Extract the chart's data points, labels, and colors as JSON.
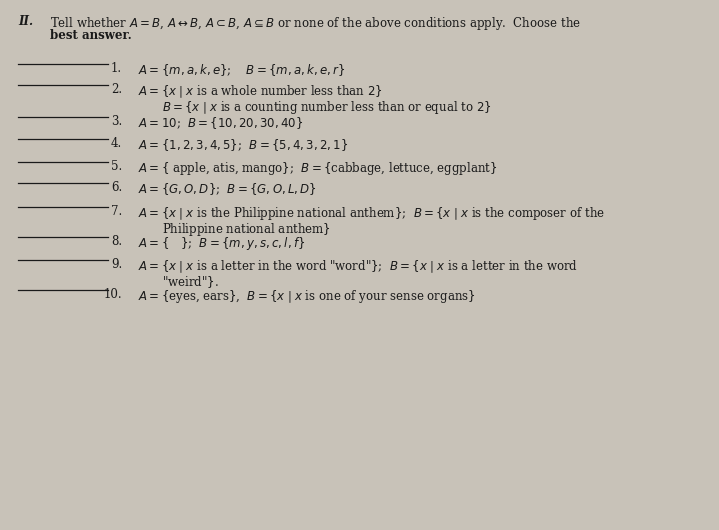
{
  "bg_color": "#c8c2b8",
  "text_color": "#1a1a1a",
  "title_roman": "II.",
  "title_line1": "Tell whether $A = B$, $A \\leftrightarrow B$, $A \\subset B$, $A \\subseteq B$ or none of the above conditions apply.  Choose the",
  "title_line2": "best answer.",
  "font_size": 8.5,
  "items": [
    {
      "num": "1.",
      "line1": "$A = \\{m, a, k, e\\}$;    $B = \\{m, a,k, e, r\\}$",
      "line2": null
    },
    {
      "num": "2.",
      "line1": "$A = \\{x \\mid x$ is a whole number less than $2\\}$",
      "line2": "$B = \\{x \\mid x$ is a counting number less than or equal to $2\\}$"
    },
    {
      "num": "3.",
      "line1": "$A = 10$;  $B = \\{10, 20, 30, 40\\}$",
      "line2": null
    },
    {
      "num": "4.",
      "line1": "$A = \\{1, 2, 3, 4, 5\\}$;  $B = \\{5, 4, 3, 2, 1\\}$",
      "line2": null
    },
    {
      "num": "5.",
      "line1": "$A = \\{$ apple, atis, mango$\\}$;  $B = \\{$cabbage, lettuce, eggplant$\\}$",
      "line2": null
    },
    {
      "num": "6.",
      "line1": "$A = \\{G, O, D\\}$;  $B = \\{G, O, L, D\\}$",
      "line2": null
    },
    {
      "num": "7.",
      "line1": "$A = \\{x \\mid x$ is the Philippine national anthem$\\}$;  $B = \\{x \\mid x$ is the composer of the",
      "line2": "Philippine national anthem$\\}$"
    },
    {
      "num": "8.",
      "line1": "$A = \\{\\quad\\}$;  $B = \\{m, y, s, c, l, f\\}$",
      "line2": null
    },
    {
      "num": "9.",
      "line1": "$A = \\{x \\mid x$ is a letter in the word \"word\"$\\}$;  $B = \\{x \\mid x$ is a letter in the word",
      "line2": "\"weird\"$\\}$."
    },
    {
      "num": "10.",
      "line1": "$A = \\{$eyes, ears$\\}$,  $B = \\{x \\mid x$ is one of your sense organs$\\}$",
      "line2": null
    }
  ]
}
